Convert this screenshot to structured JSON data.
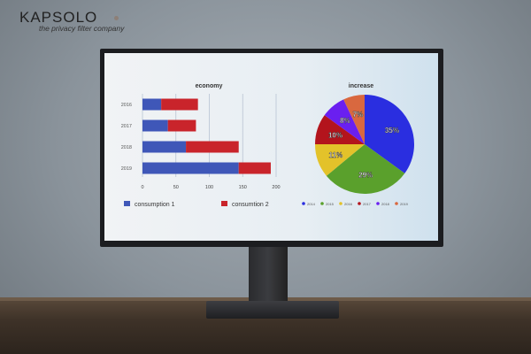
{
  "brand": {
    "name": "KAPSOLO",
    "tagline": "the privacy filter company"
  },
  "chart_data": [
    {
      "type": "bar",
      "orientation": "horizontal",
      "stacked": true,
      "title": "economy",
      "categories": [
        "2016",
        "2017",
        "2018",
        "2019"
      ],
      "series": [
        {
          "name": "consumption  1",
          "values": [
            28,
            38,
            65,
            144
          ],
          "color": "#3f57b8"
        },
        {
          "name": "consumtion 2",
          "values": [
            55,
            42,
            79,
            48
          ],
          "color": "#c9242b"
        }
      ],
      "xticks": [
        0,
        50,
        100,
        150,
        200
      ],
      "xlim": [
        0,
        200
      ],
      "grid": true,
      "legend": "bottom"
    },
    {
      "type": "pie",
      "title": "increase",
      "labels": [
        "2014",
        "2015",
        "2016",
        "2017",
        "2018",
        "2019"
      ],
      "values": [
        35,
        29,
        11,
        10,
        8,
        7
      ],
      "data_labels": [
        "35%",
        "29%",
        "11%",
        "10%",
        "8%",
        "7%"
      ],
      "colors": [
        "#2a2ee0",
        "#5aa02c",
        "#e3c22a",
        "#b3141c",
        "#6a1ff0",
        "#d9683f"
      ],
      "legend": "bottom"
    }
  ]
}
